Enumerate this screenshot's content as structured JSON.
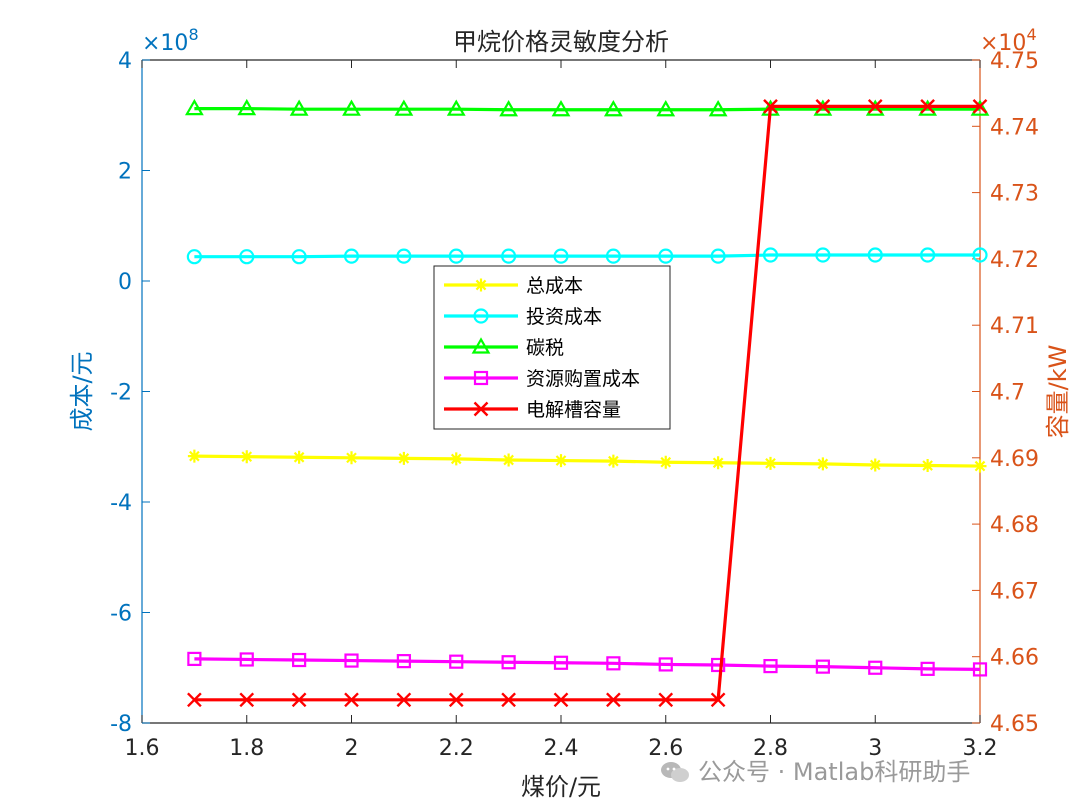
{
  "chart_data": {
    "type": "line",
    "title": "甲烷价格灵敏度分析",
    "xlabel": "煤价/元",
    "ylabel_left": "成本/元",
    "ylabel_right": "容量/kW",
    "left_exponent": "×10",
    "left_exponent_power": "8",
    "right_exponent": "×10",
    "right_exponent_power": "4",
    "xlim": [
      1.6,
      3.2
    ],
    "ylim_left": [
      -8,
      4
    ],
    "ylim_right": [
      4.65,
      4.75
    ],
    "x_ticks": [
      "1.6",
      "1.8",
      "2",
      "2.2",
      "2.4",
      "2.6",
      "2.8",
      "3",
      "3.2"
    ],
    "y_left_ticks": [
      "-8",
      "-6",
      "-4",
      "-2",
      "0",
      "2",
      "4"
    ],
    "y_right_ticks": [
      "4.65",
      "4.66",
      "4.67",
      "4.68",
      "4.69",
      "4.7",
      "4.71",
      "4.72",
      "4.73",
      "4.74",
      "4.75"
    ],
    "grid": false,
    "legend_position": "center",
    "x": [
      1.7,
      1.8,
      1.9,
      2.0,
      2.1,
      2.2,
      2.3,
      2.4,
      2.5,
      2.6,
      2.7,
      2.8,
      2.9,
      3.0,
      3.1,
      3.2
    ],
    "series": [
      {
        "name": "总成本",
        "axis": "left",
        "color": "#FFFF00",
        "marker": "star",
        "values": [
          -3.17,
          -3.18,
          -3.19,
          -3.2,
          -3.21,
          -3.22,
          -3.24,
          -3.25,
          -3.26,
          -3.28,
          -3.29,
          -3.3,
          -3.31,
          -3.33,
          -3.34,
          -3.35
        ]
      },
      {
        "name": "投资成本",
        "axis": "left",
        "color": "#00FFFF",
        "marker": "circle",
        "values": [
          0.44,
          0.44,
          0.44,
          0.45,
          0.45,
          0.45,
          0.45,
          0.45,
          0.45,
          0.45,
          0.45,
          0.47,
          0.47,
          0.47,
          0.47,
          0.47
        ]
      },
      {
        "name": "碳税",
        "axis": "left",
        "color": "#00FF00",
        "marker": "triangle",
        "values": [
          3.12,
          3.12,
          3.11,
          3.11,
          3.11,
          3.11,
          3.1,
          3.1,
          3.1,
          3.1,
          3.1,
          3.11,
          3.11,
          3.11,
          3.11,
          3.11
        ]
      },
      {
        "name": "资源购置成本",
        "axis": "left",
        "color": "#FF00FF",
        "marker": "square",
        "values": [
          -6.84,
          -6.85,
          -6.86,
          -6.87,
          -6.88,
          -6.89,
          -6.9,
          -6.91,
          -6.92,
          -6.94,
          -6.95,
          -6.97,
          -6.98,
          -7.0,
          -7.02,
          -7.03
        ]
      },
      {
        "name": "电解槽容量",
        "axis": "right",
        "color": "#FF0000",
        "marker": "x",
        "values": [
          4.6535,
          4.6535,
          4.6535,
          4.6535,
          4.6535,
          4.6535,
          4.6535,
          4.6535,
          4.6535,
          4.6535,
          4.6535,
          4.743,
          4.743,
          4.743,
          4.743,
          4.743
        ]
      }
    ]
  },
  "watermark": "公众号 · Matlab科研助手",
  "colors": {
    "left_axis": "#0072BD",
    "right_axis": "#D95319",
    "frame": "#262626"
  }
}
